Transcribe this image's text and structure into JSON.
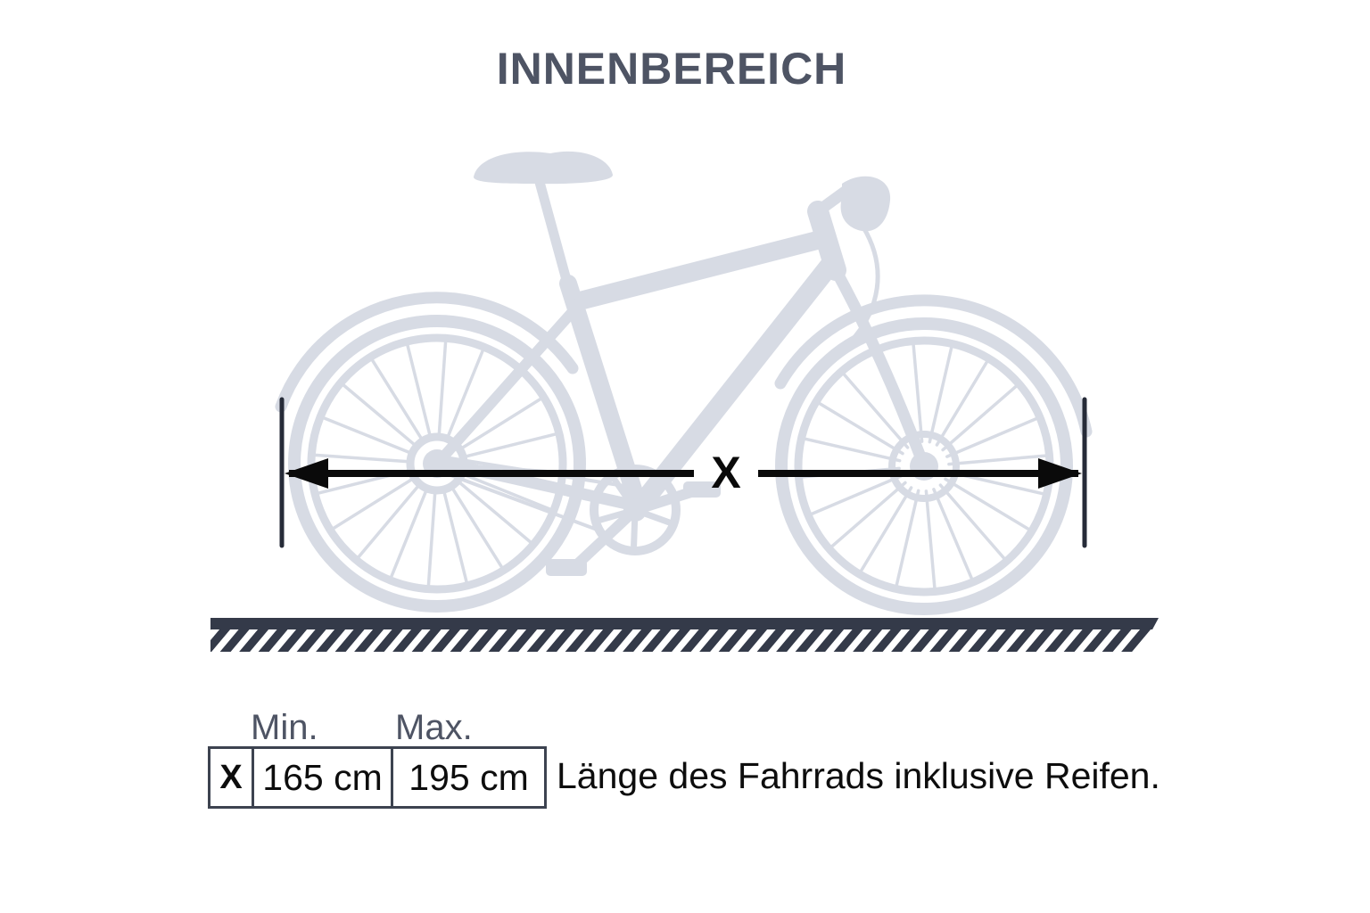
{
  "title": "INNENBEREICH",
  "measurement": {
    "label": "X"
  },
  "table": {
    "min_header": "Min.",
    "max_header": "Max.",
    "row": {
      "dimension": "X",
      "min": "165 cm",
      "max": "195 cm"
    }
  },
  "caption": "Länge des Fahrrads inklusive Reifen.",
  "colors": {
    "title_text": "#4E5464",
    "header_text": "#4E5464",
    "body_text": "#0D0D0D",
    "bike_silhouette": "#D7DBE4",
    "arrow": "#0A0A0A",
    "arrow_end_caps": "#262B38",
    "ground": "#343A49",
    "table_border": "#3D4350",
    "background": "#FFFFFF"
  }
}
